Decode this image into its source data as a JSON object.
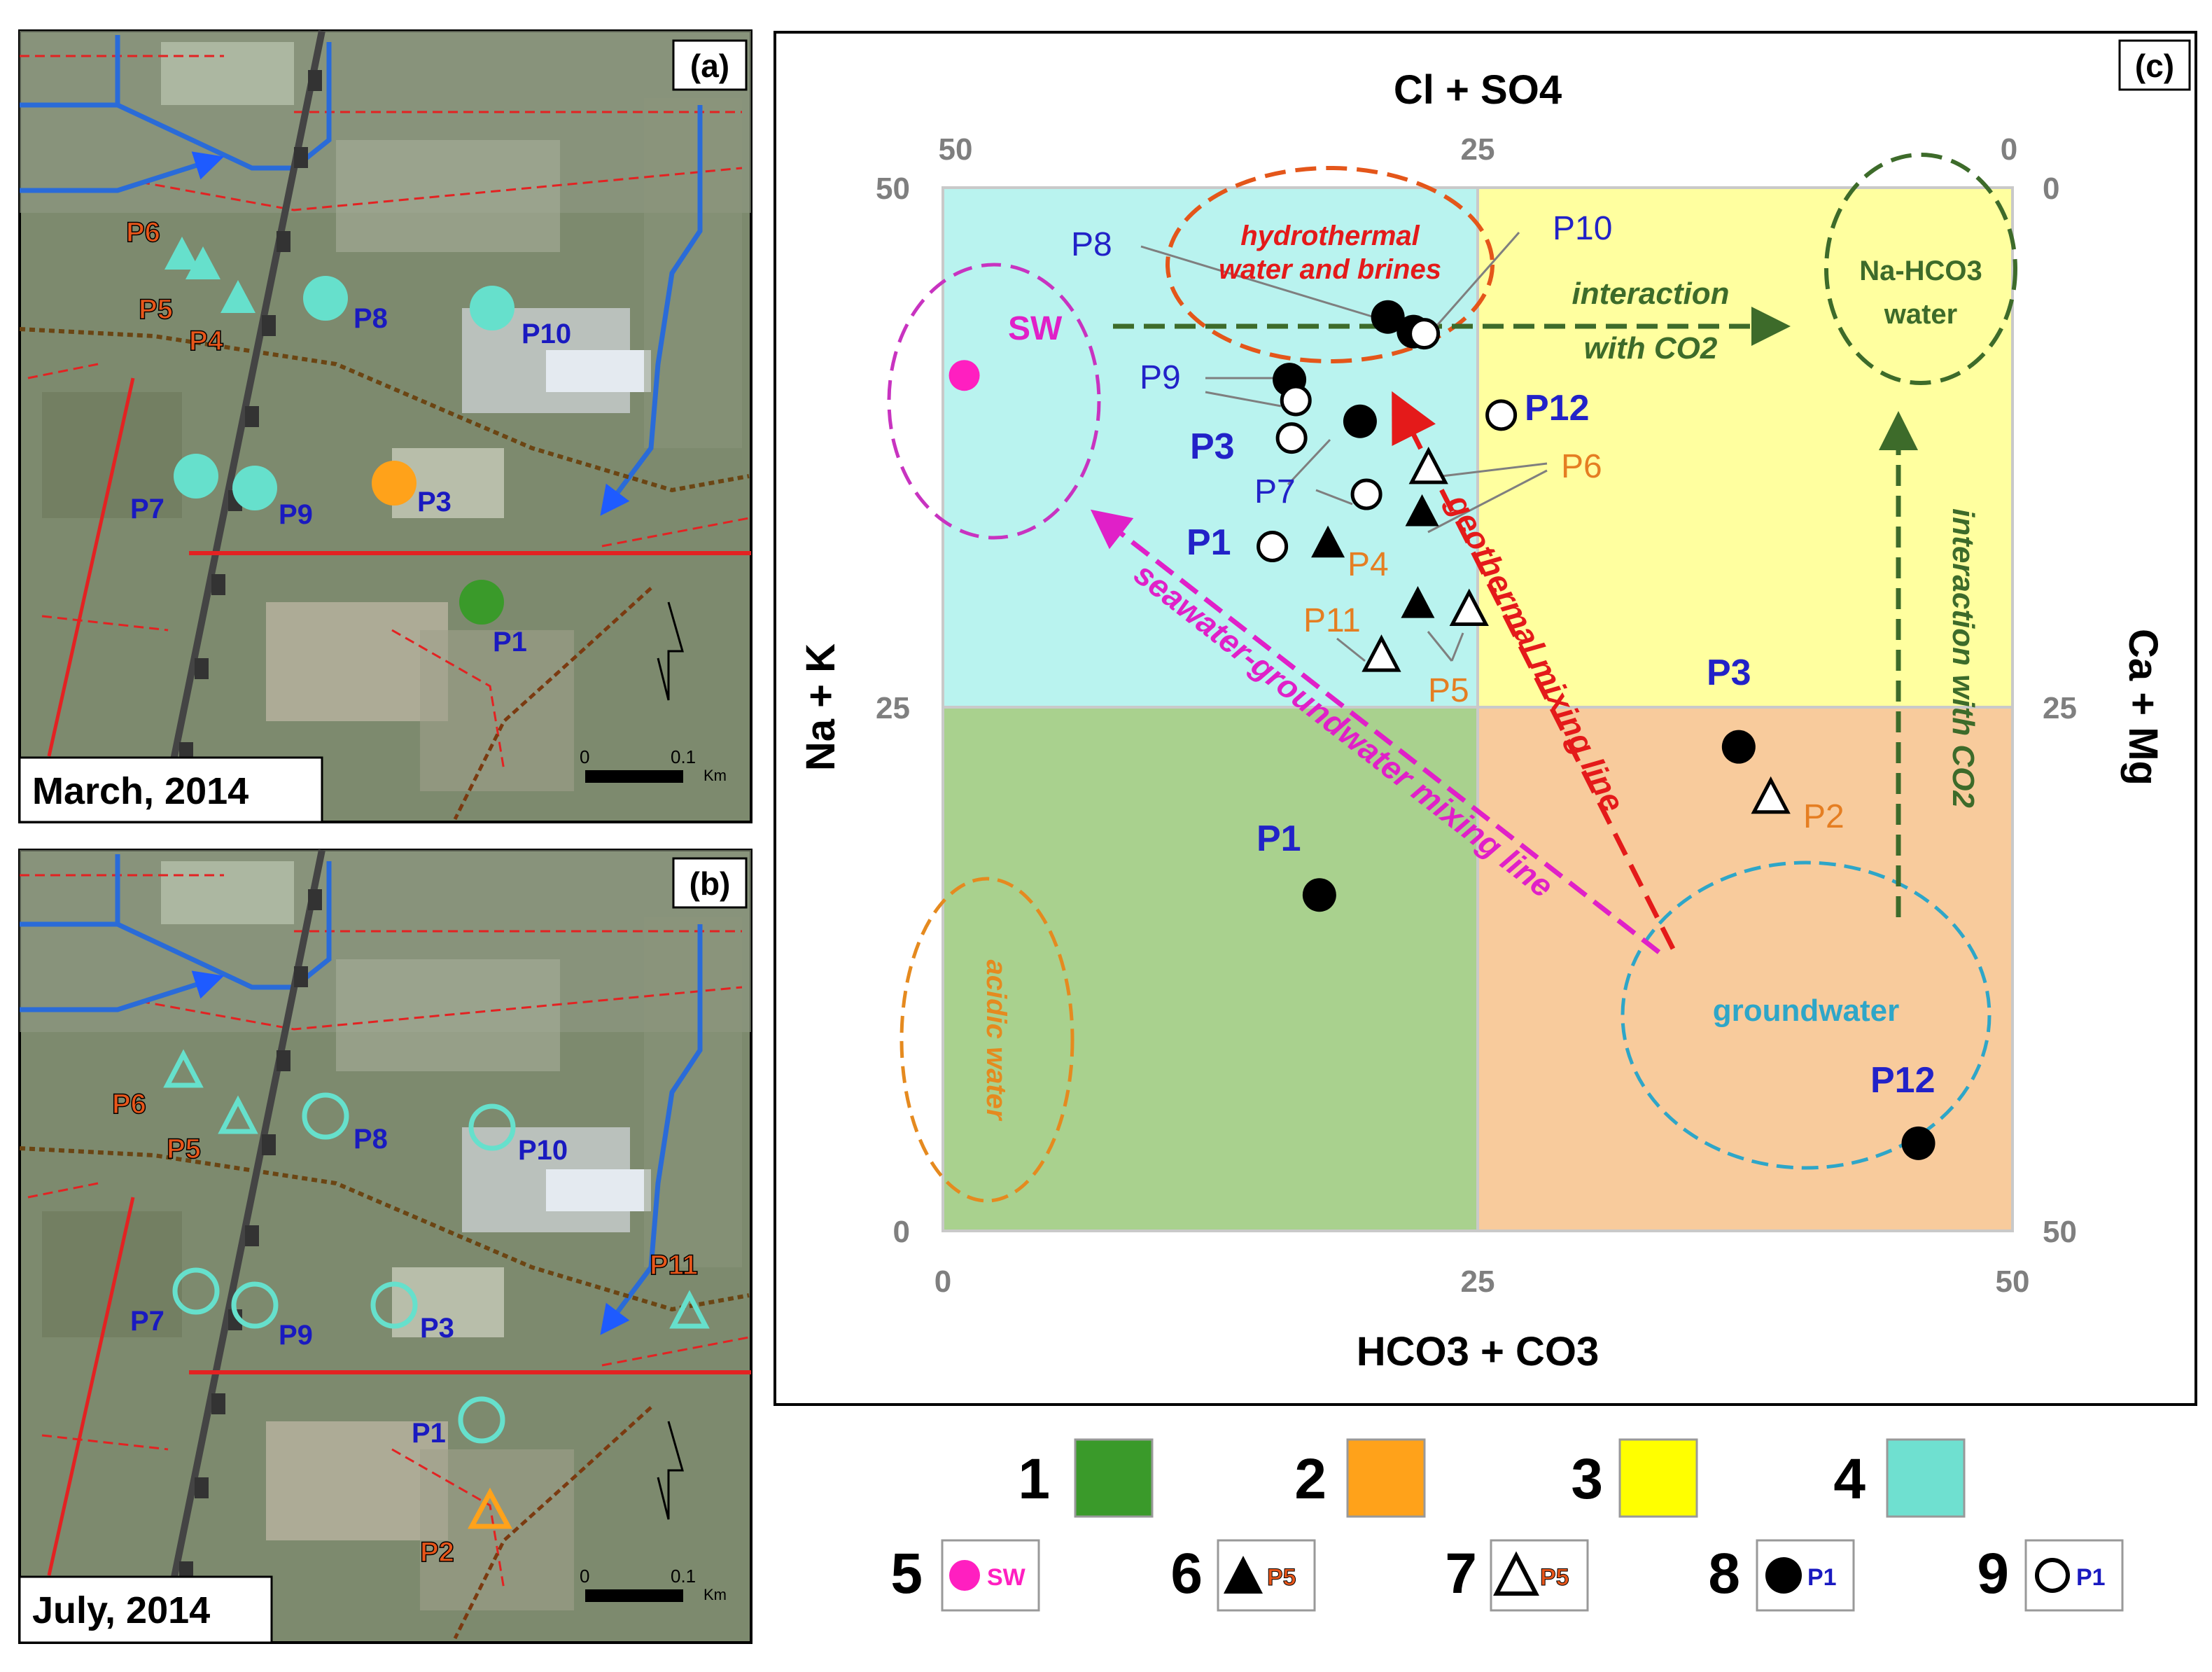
{
  "map_a": {
    "panel": "(a)",
    "date": "March, 2014",
    "scale": {
      "zero": "0",
      "dist": "0.1",
      "unit": "Km"
    },
    "points": [
      {
        "id": "P6",
        "shape": "triangle",
        "fill": "#66e0cc"
      },
      {
        "id": "P5",
        "shape": "triangle",
        "fill": "#66e0cc"
      },
      {
        "id": "P4",
        "shape": "triangle",
        "fill": "#66e0cc"
      },
      {
        "id": "P8",
        "shape": "circle",
        "fill": "#66e0cc"
      },
      {
        "id": "P10",
        "shape": "circle",
        "fill": "#66e0cc"
      },
      {
        "id": "P7",
        "shape": "circle",
        "fill": "#66e0cc"
      },
      {
        "id": "P9",
        "shape": "circle",
        "fill": "#66e0cc"
      },
      {
        "id": "P3",
        "shape": "circle",
        "fill": "#ffa21a"
      },
      {
        "id": "P1",
        "shape": "circle",
        "fill": "#3a9a2a"
      }
    ]
  },
  "map_b": {
    "panel": "(b)",
    "date": "July, 2014",
    "scale": {
      "zero": "0",
      "dist": "0.1",
      "unit": "Km"
    },
    "points": [
      {
        "id": "P6",
        "shape": "triangle-open"
      },
      {
        "id": "P5",
        "shape": "triangle-open"
      },
      {
        "id": "P8",
        "shape": "circle-open"
      },
      {
        "id": "P10",
        "shape": "circle-open"
      },
      {
        "id": "P11",
        "shape": "triangle-open"
      },
      {
        "id": "P7",
        "shape": "circle-open"
      },
      {
        "id": "P9",
        "shape": "circle-open"
      },
      {
        "id": "P3",
        "shape": "circle-open"
      },
      {
        "id": "P1",
        "shape": "circle-open"
      },
      {
        "id": "P2",
        "shape": "triangle-open"
      }
    ]
  },
  "chart_data": {
    "type": "scatter",
    "panel": "(c)",
    "xlabel_bottom": "HCO3 + CO3",
    "xlabel_top": "Cl + SO4",
    "ylabel_left": "Na + K",
    "ylabel_right": "Ca + Mg",
    "xlim": [
      0,
      50
    ],
    "ylim": [
      0,
      50
    ],
    "x_ticks_bottom": [
      "0",
      "25",
      "50"
    ],
    "x_ticks_top": [
      "50",
      "25",
      "0"
    ],
    "y_ticks_left": [
      "0",
      "25",
      "50"
    ],
    "y_ticks_right": [
      "50",
      "25",
      "0"
    ],
    "quadrants": [
      {
        "legend_id": "1",
        "color": "#a9d18e"
      },
      {
        "legend_id": "2",
        "color": "#f8cb9c"
      },
      {
        "legend_id": "3",
        "color": "#ffff9f"
      },
      {
        "legend_id": "4",
        "color": "#b9f3ef"
      }
    ],
    "points": [
      {
        "label": "SW",
        "x": 1.0,
        "y": 41.0,
        "marker": "sw"
      },
      {
        "label": "P8",
        "x": 20.8,
        "y": 43.8,
        "marker": "circle-filled"
      },
      {
        "label": "P10",
        "x": 22.0,
        "y": 43.1,
        "marker": "circle-filled"
      },
      {
        "label": "P10",
        "x": 22.5,
        "y": 43.0,
        "marker": "circle-open"
      },
      {
        "label": "P9",
        "x": 16.2,
        "y": 40.8,
        "marker": "circle-filled"
      },
      {
        "label": "P9",
        "x": 16.5,
        "y": 39.8,
        "marker": "circle-open"
      },
      {
        "label": "P3",
        "x": 19.5,
        "y": 38.8,
        "marker": "circle-filled"
      },
      {
        "label": "P3",
        "x": 16.3,
        "y": 38.0,
        "marker": "circle-open"
      },
      {
        "label": "P12",
        "x": 26.1,
        "y": 39.1,
        "marker": "circle-open"
      },
      {
        "label": "P6",
        "x": 22.7,
        "y": 36.6,
        "marker": "triangle-open"
      },
      {
        "label": "P6",
        "x": 22.4,
        "y": 34.5,
        "marker": "triangle-filled"
      },
      {
        "label": "P7",
        "x": 19.8,
        "y": 35.3,
        "marker": "circle-open"
      },
      {
        "label": "P1",
        "x": 15.4,
        "y": 32.8,
        "marker": "circle-open"
      },
      {
        "label": "P4",
        "x": 18.0,
        "y": 33.0,
        "marker": "triangle-filled"
      },
      {
        "label": "P5",
        "x": 22.2,
        "y": 30.1,
        "marker": "triangle-filled"
      },
      {
        "label": "P5",
        "x": 24.6,
        "y": 29.8,
        "marker": "triangle-open"
      },
      {
        "label": "P11",
        "x": 20.5,
        "y": 27.6,
        "marker": "triangle-open"
      },
      {
        "label": "P3",
        "x": 37.2,
        "y": 23.2,
        "marker": "circle-filled"
      },
      {
        "label": "P2",
        "x": 38.7,
        "y": 20.8,
        "marker": "triangle-open"
      },
      {
        "label": "P1",
        "x": 17.6,
        "y": 16.1,
        "marker": "circle-filled"
      },
      {
        "label": "P12",
        "x": 45.6,
        "y": 4.2,
        "marker": "circle-filled"
      }
    ],
    "water_types": {
      "sw": "SW",
      "hydro_1": "hydrothermal",
      "hydro_2": "water and brines",
      "nahco_1": "Na-HCO3",
      "nahco_2": "water",
      "acidic": "acidic water",
      "groundwater": "groundwater"
    },
    "arrows": {
      "interaction_1": "interaction",
      "interaction_2": "with CO2",
      "interaction_vertical": "interaction with CO2",
      "geothermal": "geothermal mixing line",
      "seawater": "seawater-groundwater mixing line"
    }
  },
  "legend": [
    {
      "n": "1",
      "color": "#3a9a2a"
    },
    {
      "n": "2",
      "color": "#ffa21a"
    },
    {
      "n": "3",
      "color": "#ffff00"
    },
    {
      "n": "4",
      "color": "#6fe0d0"
    },
    {
      "n": "5",
      "marker": "sw-circle",
      "text": "SW"
    },
    {
      "n": "6",
      "marker": "triangle-filled",
      "text": "P5"
    },
    {
      "n": "7",
      "marker": "triangle-open",
      "text": "P5"
    },
    {
      "n": "8",
      "marker": "circle-filled",
      "text": "P1"
    },
    {
      "n": "9",
      "marker": "circle-open",
      "text": "P1"
    }
  ]
}
